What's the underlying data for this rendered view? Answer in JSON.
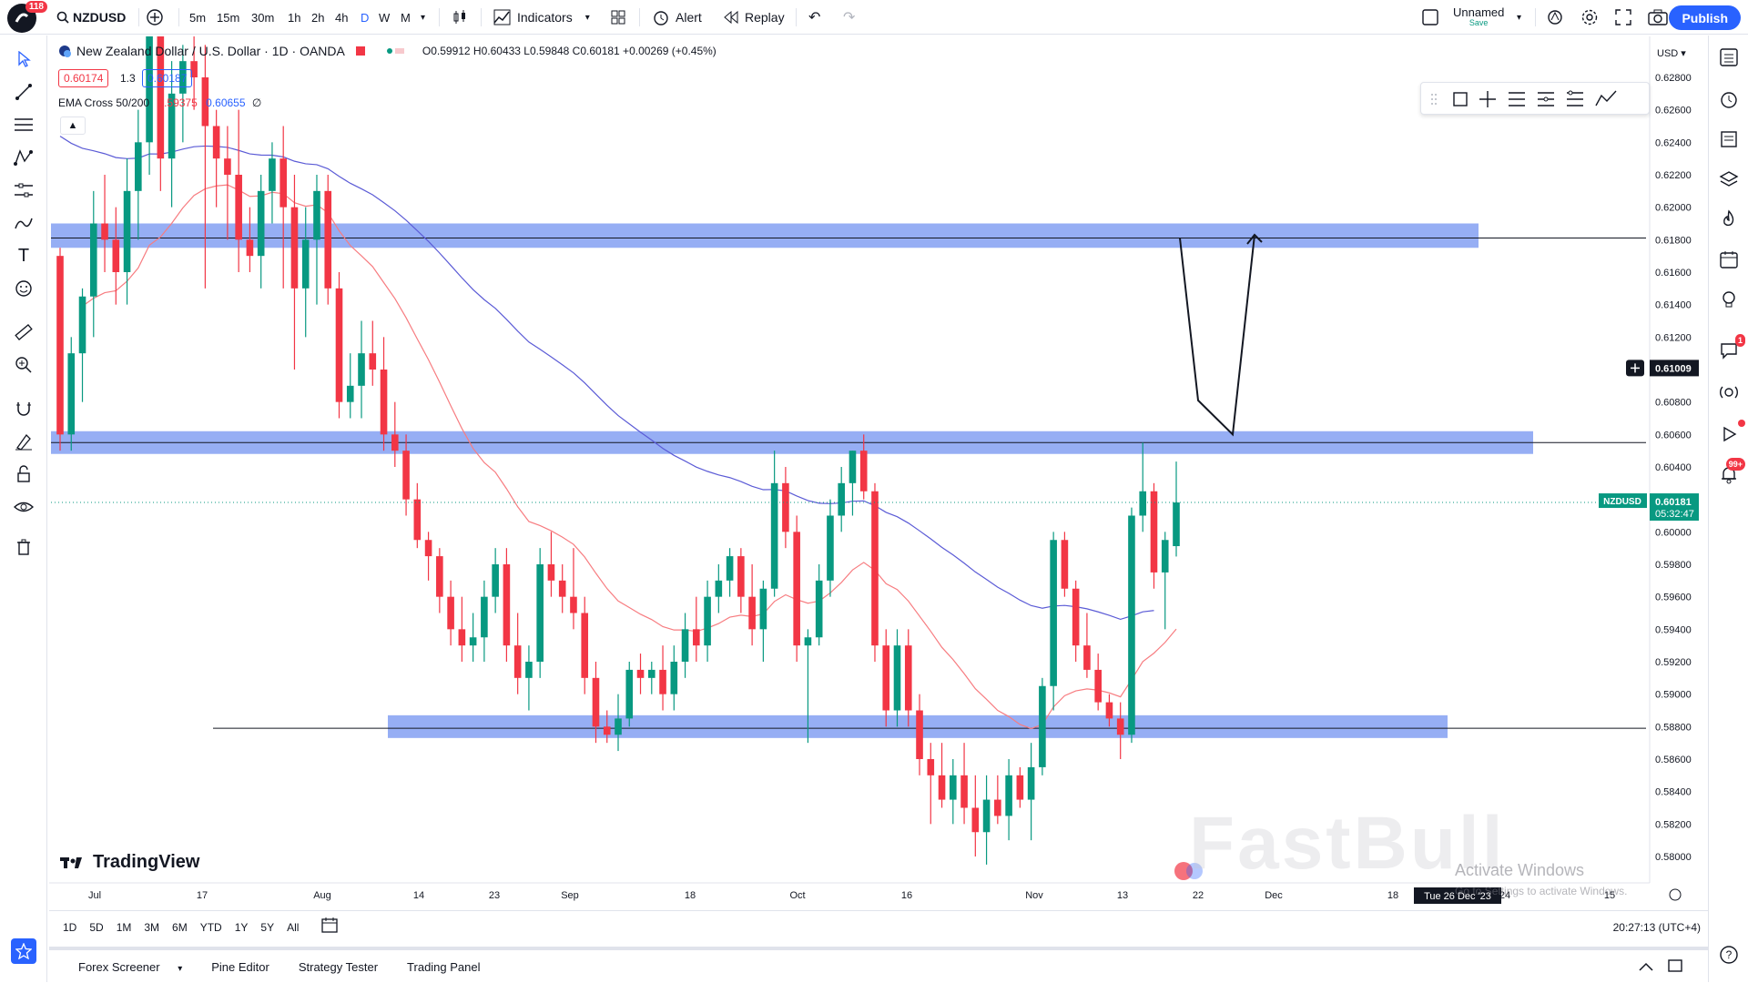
{
  "app": {
    "notifications": "118",
    "symbol": "NZDUSD",
    "intervals": [
      "5m",
      "15m",
      "30m",
      "1h",
      "2h",
      "4h",
      "D",
      "W",
      "M"
    ],
    "active_interval": "D",
    "indicators_label": "Indicators",
    "alert_label": "Alert",
    "replay_label": "Replay",
    "layout_name": "Unnamed",
    "layout_status": "Save",
    "publish_label": "Publish"
  },
  "legend": {
    "title": "New Zealand Dollar / U.S. Dollar · 1D · OANDA",
    "ohlc": "O0.59912 H0.60433 L0.59848 C0.60181 +0.00269 (+0.45%)",
    "bid": "0.60174",
    "spread": "1.3",
    "ask": "0.60187",
    "ema_name": "EMA Cross 50/200",
    "ema_fast": "0.59375",
    "ema_slow": "0.60655",
    "ema_extra": "∅"
  },
  "price_axis": {
    "currency": "USD",
    "ticks": [
      "0.62800",
      "0.62600",
      "0.62400",
      "0.62200",
      "0.62000",
      "0.61800",
      "0.61600",
      "0.61400",
      "0.61200",
      "0.61000",
      "0.60800",
      "0.60600",
      "0.60400",
      "0.60200",
      "0.60000",
      "0.59800",
      "0.59600",
      "0.59400",
      "0.59200",
      "0.59000",
      "0.58800",
      "0.58600",
      "0.58400",
      "0.58200",
      "0.58000"
    ],
    "crosshair_price": "0.61009",
    "last_symbol": "NZDUSD",
    "last_price": "0.60181",
    "countdown": "05:32:47"
  },
  "time_axis": {
    "ticks": [
      "Jul",
      "17",
      "Aug",
      "14",
      "23",
      "Sep",
      "18",
      "Oct",
      "16",
      "Nov",
      "13",
      "22",
      "Dec",
      "18",
      "24",
      "15"
    ],
    "cursor_date": "Tue 26 Dec '23"
  },
  "watermark": {
    "brand": "TradingView",
    "fastbull": "FastBull",
    "windows_line1": "Activate Windows",
    "windows_line2": "Go to Settings to activate Windows."
  },
  "ranges": [
    "1D",
    "5D",
    "1M",
    "3M",
    "6M",
    "YTD",
    "1Y",
    "5Y",
    "All"
  ],
  "clock": "20:27:13 (UTC+4)",
  "bottom_panel": [
    "Forex Screener",
    "Pine Editor",
    "Strategy Tester",
    "Trading Panel"
  ],
  "right_badges": {
    "alerts": "1",
    "news": "99+"
  },
  "colors": {
    "up": "#089981",
    "down": "#f23645",
    "zone": "#6d8ff0",
    "ema_fast": "#f77c80",
    "ema_slow": "#5b5bd6",
    "accent": "#2962ff"
  },
  "chart_data": {
    "type": "candlestick",
    "ylim": [
      0.579,
      0.629
    ],
    "candles": [
      [
        0.617,
        0.6175,
        0.605,
        0.606
      ],
      [
        0.606,
        0.612,
        0.605,
        0.611
      ],
      [
        0.611,
        0.615,
        0.608,
        0.6145
      ],
      [
        0.6145,
        0.621,
        0.612,
        0.619
      ],
      [
        0.619,
        0.622,
        0.616,
        0.618
      ],
      [
        0.618,
        0.62,
        0.614,
        0.616
      ],
      [
        0.616,
        0.623,
        0.614,
        0.621
      ],
      [
        0.621,
        0.626,
        0.618,
        0.624
      ],
      [
        0.624,
        0.633,
        0.622,
        0.631
      ],
      [
        0.631,
        0.634,
        0.621,
        0.623
      ],
      [
        0.623,
        0.629,
        0.62,
        0.627
      ],
      [
        0.627,
        0.63,
        0.624,
        0.629
      ],
      [
        0.629,
        0.632,
        0.626,
        0.628
      ],
      [
        0.628,
        0.63,
        0.615,
        0.625
      ],
      [
        0.625,
        0.626,
        0.62,
        0.623
      ],
      [
        0.623,
        0.625,
        0.618,
        0.622
      ],
      [
        0.622,
        0.626,
        0.616,
        0.618
      ],
      [
        0.618,
        0.62,
        0.616,
        0.617
      ],
      [
        0.617,
        0.622,
        0.615,
        0.621
      ],
      [
        0.621,
        0.624,
        0.619,
        0.623
      ],
      [
        0.623,
        0.625,
        0.615,
        0.62
      ],
      [
        0.62,
        0.622,
        0.61,
        0.615
      ],
      [
        0.615,
        0.62,
        0.612,
        0.618
      ],
      [
        0.618,
        0.622,
        0.614,
        0.621
      ],
      [
        0.621,
        0.622,
        0.614,
        0.615
      ],
      [
        0.615,
        0.616,
        0.607,
        0.608
      ],
      [
        0.608,
        0.611,
        0.607,
        0.609
      ],
      [
        0.609,
        0.613,
        0.607,
        0.611
      ],
      [
        0.611,
        0.613,
        0.609,
        0.61
      ],
      [
        0.61,
        0.612,
        0.605,
        0.606
      ],
      [
        0.606,
        0.608,
        0.604,
        0.605
      ],
      [
        0.605,
        0.606,
        0.601,
        0.602
      ],
      [
        0.602,
        0.603,
        0.599,
        0.5995
      ],
      [
        0.5995,
        0.6,
        0.597,
        0.5985
      ],
      [
        0.5985,
        0.599,
        0.595,
        0.596
      ],
      [
        0.596,
        0.597,
        0.593,
        0.594
      ],
      [
        0.594,
        0.596,
        0.592,
        0.593
      ],
      [
        0.593,
        0.595,
        0.592,
        0.5935
      ],
      [
        0.5935,
        0.597,
        0.592,
        0.596
      ],
      [
        0.596,
        0.599,
        0.595,
        0.598
      ],
      [
        0.598,
        0.599,
        0.592,
        0.593
      ],
      [
        0.593,
        0.595,
        0.59,
        0.591
      ],
      [
        0.591,
        0.593,
        0.589,
        0.592
      ],
      [
        0.592,
        0.599,
        0.591,
        0.598
      ],
      [
        0.598,
        0.6,
        0.596,
        0.597
      ],
      [
        0.597,
        0.598,
        0.595,
        0.596
      ],
      [
        0.596,
        0.599,
        0.594,
        0.595
      ],
      [
        0.595,
        0.596,
        0.59,
        0.591
      ],
      [
        0.591,
        0.592,
        0.587,
        0.588
      ],
      [
        0.588,
        0.589,
        0.587,
        0.5875
      ],
      [
        0.5875,
        0.59,
        0.5865,
        0.5885
      ],
      [
        0.5885,
        0.592,
        0.588,
        0.5915
      ],
      [
        0.5915,
        0.5925,
        0.59,
        0.591
      ],
      [
        0.591,
        0.592,
        0.59,
        0.5915
      ],
      [
        0.5915,
        0.593,
        0.589,
        0.59
      ],
      [
        0.59,
        0.593,
        0.589,
        0.592
      ],
      [
        0.592,
        0.595,
        0.591,
        0.594
      ],
      [
        0.594,
        0.596,
        0.592,
        0.593
      ],
      [
        0.593,
        0.597,
        0.592,
        0.596
      ],
      [
        0.596,
        0.598,
        0.595,
        0.597
      ],
      [
        0.597,
        0.599,
        0.596,
        0.5985
      ],
      [
        0.5985,
        0.599,
        0.595,
        0.596
      ],
      [
        0.596,
        0.598,
        0.593,
        0.594
      ],
      [
        0.594,
        0.597,
        0.592,
        0.5965
      ],
      [
        0.5965,
        0.605,
        0.596,
        0.603
      ],
      [
        0.603,
        0.604,
        0.599,
        0.6
      ],
      [
        0.6,
        0.601,
        0.592,
        0.593
      ],
      [
        0.593,
        0.594,
        0.587,
        0.5935
      ],
      [
        0.5935,
        0.598,
        0.593,
        0.597
      ],
      [
        0.597,
        0.602,
        0.596,
        0.601
      ],
      [
        0.601,
        0.604,
        0.6,
        0.603
      ],
      [
        0.603,
        0.605,
        0.601,
        0.605
      ],
      [
        0.605,
        0.606,
        0.602,
        0.6025
      ],
      [
        0.6025,
        0.603,
        0.592,
        0.593
      ],
      [
        0.593,
        0.594,
        0.588,
        0.589
      ],
      [
        0.589,
        0.594,
        0.588,
        0.593
      ],
      [
        0.593,
        0.594,
        0.588,
        0.589
      ],
      [
        0.589,
        0.59,
        0.585,
        0.586
      ],
      [
        0.586,
        0.587,
        0.582,
        0.585
      ],
      [
        0.585,
        0.587,
        0.583,
        0.5835
      ],
      [
        0.5835,
        0.586,
        0.582,
        0.585
      ],
      [
        0.585,
        0.587,
        0.582,
        0.583
      ],
      [
        0.583,
        0.585,
        0.58,
        0.5815
      ],
      [
        0.5815,
        0.585,
        0.5795,
        0.5835
      ],
      [
        0.5835,
        0.585,
        0.582,
        0.5825
      ],
      [
        0.5825,
        0.586,
        0.581,
        0.585
      ],
      [
        0.585,
        0.5855,
        0.583,
        0.5835
      ],
      [
        0.5835,
        0.587,
        0.581,
        0.5855
      ],
      [
        0.5855,
        0.591,
        0.585,
        0.5905
      ],
      [
        0.5905,
        0.6,
        0.589,
        0.5995
      ],
      [
        0.5995,
        0.6,
        0.596,
        0.5965
      ],
      [
        0.5965,
        0.597,
        0.592,
        0.593
      ],
      [
        0.593,
        0.595,
        0.591,
        0.5915
      ],
      [
        0.5915,
        0.5925,
        0.589,
        0.5895
      ],
      [
        0.5895,
        0.59,
        0.588,
        0.5885
      ],
      [
        0.5885,
        0.5895,
        0.586,
        0.5875
      ],
      [
        0.5875,
        0.6015,
        0.587,
        0.601
      ],
      [
        0.601,
        0.6055,
        0.6,
        0.6025
      ],
      [
        0.6025,
        0.603,
        0.5965,
        0.5975
      ],
      [
        0.5975,
        0.6,
        0.594,
        0.5995
      ],
      [
        0.59912,
        0.60433,
        0.59848,
        0.60181
      ]
    ],
    "ema_50_label": "EMA 50",
    "ema_200_label": "EMA 200",
    "zones": [
      {
        "low": 0.6175,
        "high": 0.619
      },
      {
        "low": 0.6048,
        "high": 0.6062
      },
      {
        "low": 0.5873,
        "high": 0.5887
      }
    ],
    "levels": [
      0.6181,
      0.6055,
      0.5879
    ],
    "projection": [
      0.6181,
      0.6081,
      0.606,
      0.6183
    ]
  }
}
